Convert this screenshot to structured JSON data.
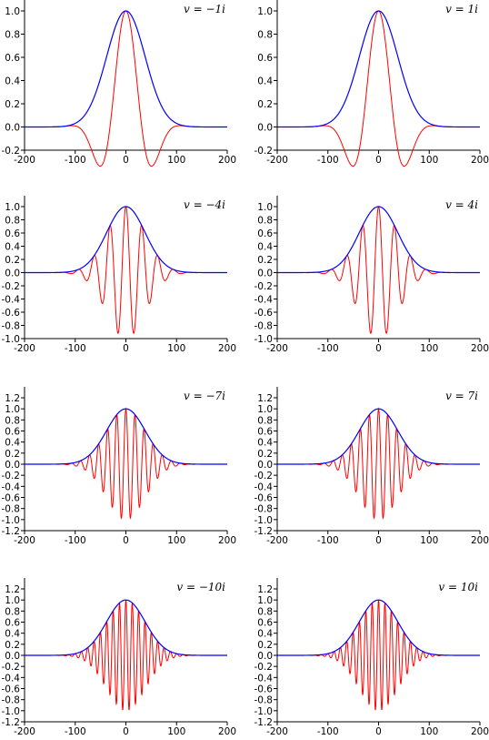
{
  "chart_data": [
    {
      "type": "line",
      "title": "v = −1i",
      "formula": {
        "v": "−1i",
        "n": 1
      },
      "xlim": [
        -200,
        200
      ],
      "xticks": [
        "-200",
        "-100",
        "0",
        "100",
        "200"
      ],
      "ylim": [
        -0.2,
        1.0
      ],
      "yticks": [
        "-0.2",
        "0.0",
        "0.2",
        "0.4",
        "0.6",
        "0.8",
        "1.0"
      ],
      "series": [
        {
          "color": "#0000ff"
        },
        {
          "color": "#ff0000"
        }
      ]
    },
    {
      "type": "line",
      "title": "v = 1i",
      "formula": {
        "v": "1i",
        "n": 1
      },
      "xlim": [
        -200,
        200
      ],
      "xticks": [
        "-200",
        "-100",
        "0",
        "100",
        "200"
      ],
      "ylim": [
        -0.2,
        1.0
      ],
      "yticks": [
        "-0.2",
        "0.0",
        "0.2",
        "0.4",
        "0.6",
        "0.8",
        "1.0"
      ],
      "series": [
        {
          "color": "#0000ff"
        },
        {
          "color": "#ff0000"
        }
      ]
    },
    {
      "type": "line",
      "title": "v = −4i",
      "formula": {
        "v": "−4i",
        "n": 4
      },
      "xlim": [
        -200,
        200
      ],
      "xticks": [
        "-200",
        "-100",
        "0",
        "100",
        "200"
      ],
      "ylim": [
        -1.0,
        1.0
      ],
      "yticks": [
        "-1.0",
        "-0.8",
        "-0.6",
        "-0.4",
        "-0.2",
        "0.0",
        "0.2",
        "0.4",
        "0.6",
        "0.8",
        "1.0"
      ],
      "series": [
        {
          "color": "#0000ff"
        },
        {
          "color": "#ff0000"
        }
      ]
    },
    {
      "type": "line",
      "title": "v = 4i",
      "formula": {
        "v": "4i",
        "n": 4
      },
      "xlim": [
        -200,
        200
      ],
      "xticks": [
        "-200",
        "-100",
        "0",
        "100",
        "200"
      ],
      "ylim": [
        -1.0,
        1.0
      ],
      "yticks": [
        "-1.0",
        "-0.8",
        "-0.6",
        "-0.4",
        "-0.2",
        "0.0",
        "0.2",
        "0.4",
        "0.6",
        "0.8",
        "1.0"
      ],
      "series": [
        {
          "color": "#0000ff"
        },
        {
          "color": "#ff0000"
        }
      ]
    },
    {
      "type": "line",
      "title": "v = −7i",
      "formula": {
        "v": "−7i",
        "n": 7
      },
      "xlim": [
        -200,
        200
      ],
      "xticks": [
        "-200",
        "-100",
        "0",
        "100",
        "200"
      ],
      "ylim": [
        -1.2,
        1.2
      ],
      "yticks": [
        "-1.2",
        "-1.0",
        "-0.8",
        "-0.6",
        "-0.4",
        "-0.2",
        "0.0",
        "0.2",
        "0.4",
        "0.6",
        "0.8",
        "1.0",
        "1.2"
      ],
      "series": [
        {
          "color": "#0000ff"
        },
        {
          "color": "#ff0000"
        }
      ]
    },
    {
      "type": "line",
      "title": "v = 7i",
      "formula": {
        "v": "7i",
        "n": 7
      },
      "xlim": [
        -200,
        200
      ],
      "xticks": [
        "-200",
        "-100",
        "0",
        "100",
        "200"
      ],
      "ylim": [
        -1.2,
        1.2
      ],
      "yticks": [
        "-1.2",
        "-1.0",
        "-0.8",
        "-0.6",
        "-0.4",
        "-0.2",
        "0.0",
        "0.2",
        "0.4",
        "0.6",
        "0.8",
        "1.0",
        "1.2"
      ],
      "series": [
        {
          "color": "#0000ff"
        },
        {
          "color": "#ff0000"
        }
      ]
    },
    {
      "type": "line",
      "title": "v = −10i",
      "formula": {
        "v": "−10i",
        "n": 10
      },
      "xlim": [
        -200,
        200
      ],
      "xticks": [
        "-200",
        "-100",
        "0",
        "100",
        "200"
      ],
      "ylim": [
        -1.2,
        1.2
      ],
      "yticks": [
        "-1.2",
        "-1.0",
        "-0.8",
        "-0.6",
        "-0.4",
        "-0.2",
        "0.0",
        "0.2",
        "0.4",
        "0.6",
        "0.8",
        "1.0",
        "1.2"
      ],
      "series": [
        {
          "color": "#0000ff"
        },
        {
          "color": "#ff0000"
        }
      ]
    },
    {
      "type": "line",
      "title": "v = 10i",
      "formula": {
        "v": "10i",
        "n": 10
      },
      "xlim": [
        -200,
        200
      ],
      "xticks": [
        "-200",
        "-100",
        "0",
        "100",
        "200"
      ],
      "ylim": [
        -1.2,
        1.2
      ],
      "yticks": [
        "-1.2",
        "-1.0",
        "-0.8",
        "-0.6",
        "-0.4",
        "-0.2",
        "0.0",
        "0.2",
        "0.4",
        "0.6",
        "0.8",
        "1.0",
        "1.2"
      ],
      "series": [
        {
          "color": "#0000ff"
        },
        {
          "color": "#ff0000"
        }
      ]
    }
  ]
}
